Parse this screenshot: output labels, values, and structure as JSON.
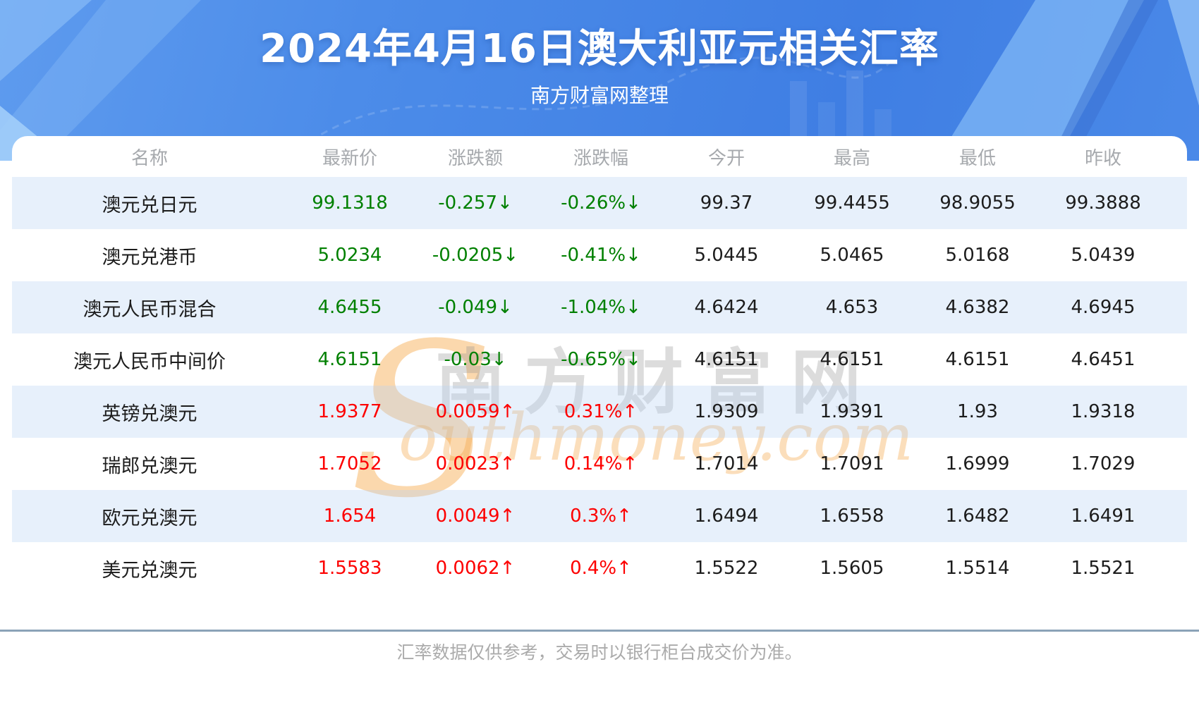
{
  "header": {
    "title": "2024年4月16日澳大利亚元相关汇率",
    "subtitle": "南方财富网整理"
  },
  "table": {
    "columns": [
      "名称",
      "最新价",
      "涨跌额",
      "涨跌幅",
      "今开",
      "最高",
      "最低",
      "昨收"
    ],
    "rows": [
      {
        "name": "澳元兑日元",
        "last": "99.1318",
        "change": "-0.257↓",
        "pct": "-0.26%↓",
        "open": "99.37",
        "high": "99.4455",
        "low": "98.9055",
        "prev": "99.3888",
        "trend": "down"
      },
      {
        "name": "澳元兑港币",
        "last": "5.0234",
        "change": "-0.0205↓",
        "pct": "-0.41%↓",
        "open": "5.0445",
        "high": "5.0465",
        "low": "5.0168",
        "prev": "5.0439",
        "trend": "down"
      },
      {
        "name": "澳元人民币混合",
        "last": "4.6455",
        "change": "-0.049↓",
        "pct": "-1.04%↓",
        "open": "4.6424",
        "high": "4.653",
        "low": "4.6382",
        "prev": "4.6945",
        "trend": "down"
      },
      {
        "name": "澳元人民币中间价",
        "last": "4.6151",
        "change": "-0.03↓",
        "pct": "-0.65%↓",
        "open": "4.6151",
        "high": "4.6151",
        "low": "4.6151",
        "prev": "4.6451",
        "trend": "down"
      },
      {
        "name": "英镑兑澳元",
        "last": "1.9377",
        "change": "0.0059↑",
        "pct": "0.31%↑",
        "open": "1.9309",
        "high": "1.9391",
        "low": "1.93",
        "prev": "1.9318",
        "trend": "up"
      },
      {
        "name": "瑞郎兑澳元",
        "last": "1.7052",
        "change": "0.0023↑",
        "pct": "0.14%↑",
        "open": "1.7014",
        "high": "1.7091",
        "low": "1.6999",
        "prev": "1.7029",
        "trend": "up"
      },
      {
        "name": "欧元兑澳元",
        "last": "1.654",
        "change": "0.0049↑",
        "pct": "0.3%↑",
        "open": "1.6494",
        "high": "1.6558",
        "low": "1.6482",
        "prev": "1.6491",
        "trend": "up"
      },
      {
        "name": "美元兑澳元",
        "last": "1.5583",
        "change": "0.0062↑",
        "pct": "0.4%↑",
        "open": "1.5522",
        "high": "1.5605",
        "low": "1.5514",
        "prev": "1.5521",
        "trend": "up"
      }
    ]
  },
  "watermark": {
    "s": "S",
    "cn": "南方财富网",
    "en": "outhmoney.com"
  },
  "footer": {
    "disclaimer": "汇率数据仅供参考，交易时以银行柜台成交价为准。"
  },
  "colors": {
    "up_red": "#fd0000",
    "down_green": "#008000",
    "hero_blue": "#4a89e8",
    "stripe_blue": "#e9f1fb",
    "divider_gray_blue": "#8ba3b8"
  }
}
